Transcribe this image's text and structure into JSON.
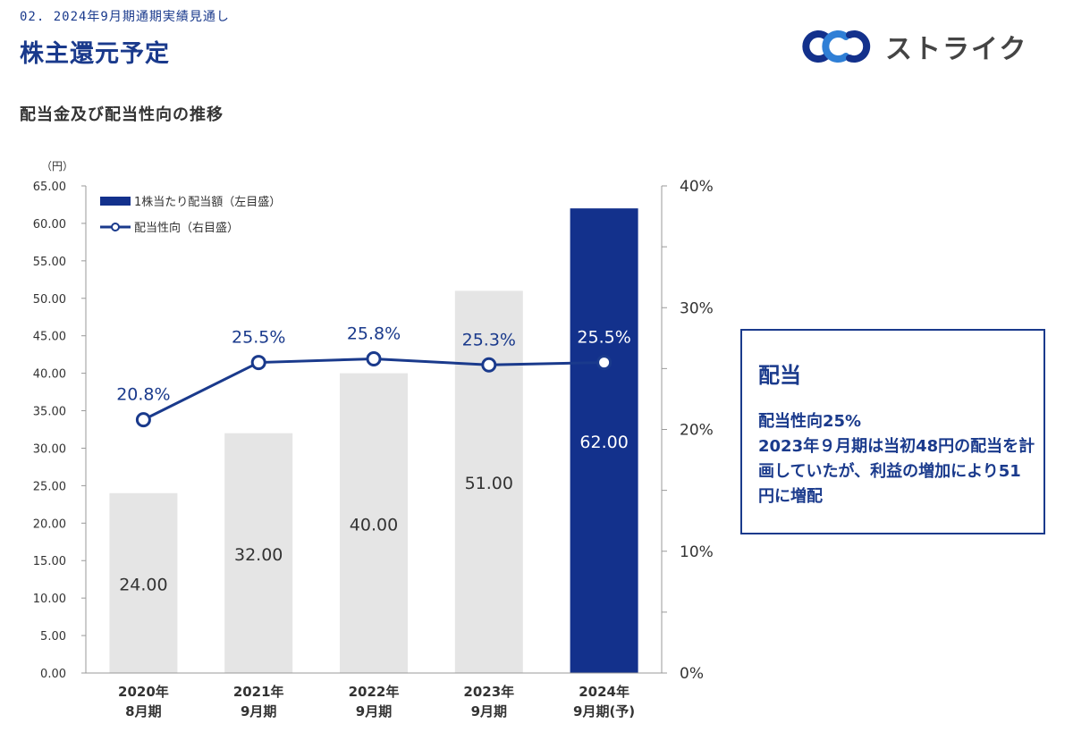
{
  "header": {
    "section_label": "02. 2024年9月期通期実績見通し",
    "title": "株主還元予定",
    "logo_text": "ストライク"
  },
  "subtitle": "配当金及び配当性向の推移",
  "colors": {
    "accent": "#1a3a8c",
    "bar_default": "#e5e5e5",
    "bar_highlight": "#13318c"
  },
  "note": {
    "title": "配当",
    "body": "配当性向25%\n2023年９月期は当初48円の配当を計画していたが、利益の増加により51円に増配"
  },
  "chart_data": {
    "type": "bar",
    "categories": [
      [
        "2020年",
        "8月期"
      ],
      [
        "2021年",
        "9月期"
      ],
      [
        "2022年",
        "9月期"
      ],
      [
        "2023年",
        "9月期"
      ],
      [
        "2024年",
        "9月期(予)"
      ]
    ],
    "series": [
      {
        "name": "1株当たり配当額（左目盛）",
        "type": "bar",
        "axis": "left",
        "values": [
          24.0,
          32.0,
          40.0,
          51.0,
          62.0
        ],
        "labels": [
          "24.00",
          "32.00",
          "40.00",
          "51.00",
          "62.00"
        ],
        "highlight_index": 4
      },
      {
        "name": "配当性向（右目盛）",
        "type": "line",
        "axis": "right",
        "values": [
          20.8,
          25.5,
          25.8,
          25.3,
          25.5
        ],
        "labels": [
          "20.8%",
          "25.5%",
          "25.8%",
          "25.3%",
          "25.5%"
        ]
      }
    ],
    "left_axis": {
      "unit": "（円）",
      "min": 0,
      "max": 65,
      "ticks": [
        "0.00",
        "5.00",
        "10.00",
        "15.00",
        "20.00",
        "25.00",
        "30.00",
        "35.00",
        "40.00",
        "45.00",
        "50.00",
        "55.00",
        "60.00",
        "65.00"
      ]
    },
    "right_axis": {
      "min": 0,
      "max": 40,
      "ticks": [
        "0%",
        "10%",
        "20%",
        "30%",
        "40%"
      ]
    },
    "legend_position": "top-left",
    "grid": false
  }
}
